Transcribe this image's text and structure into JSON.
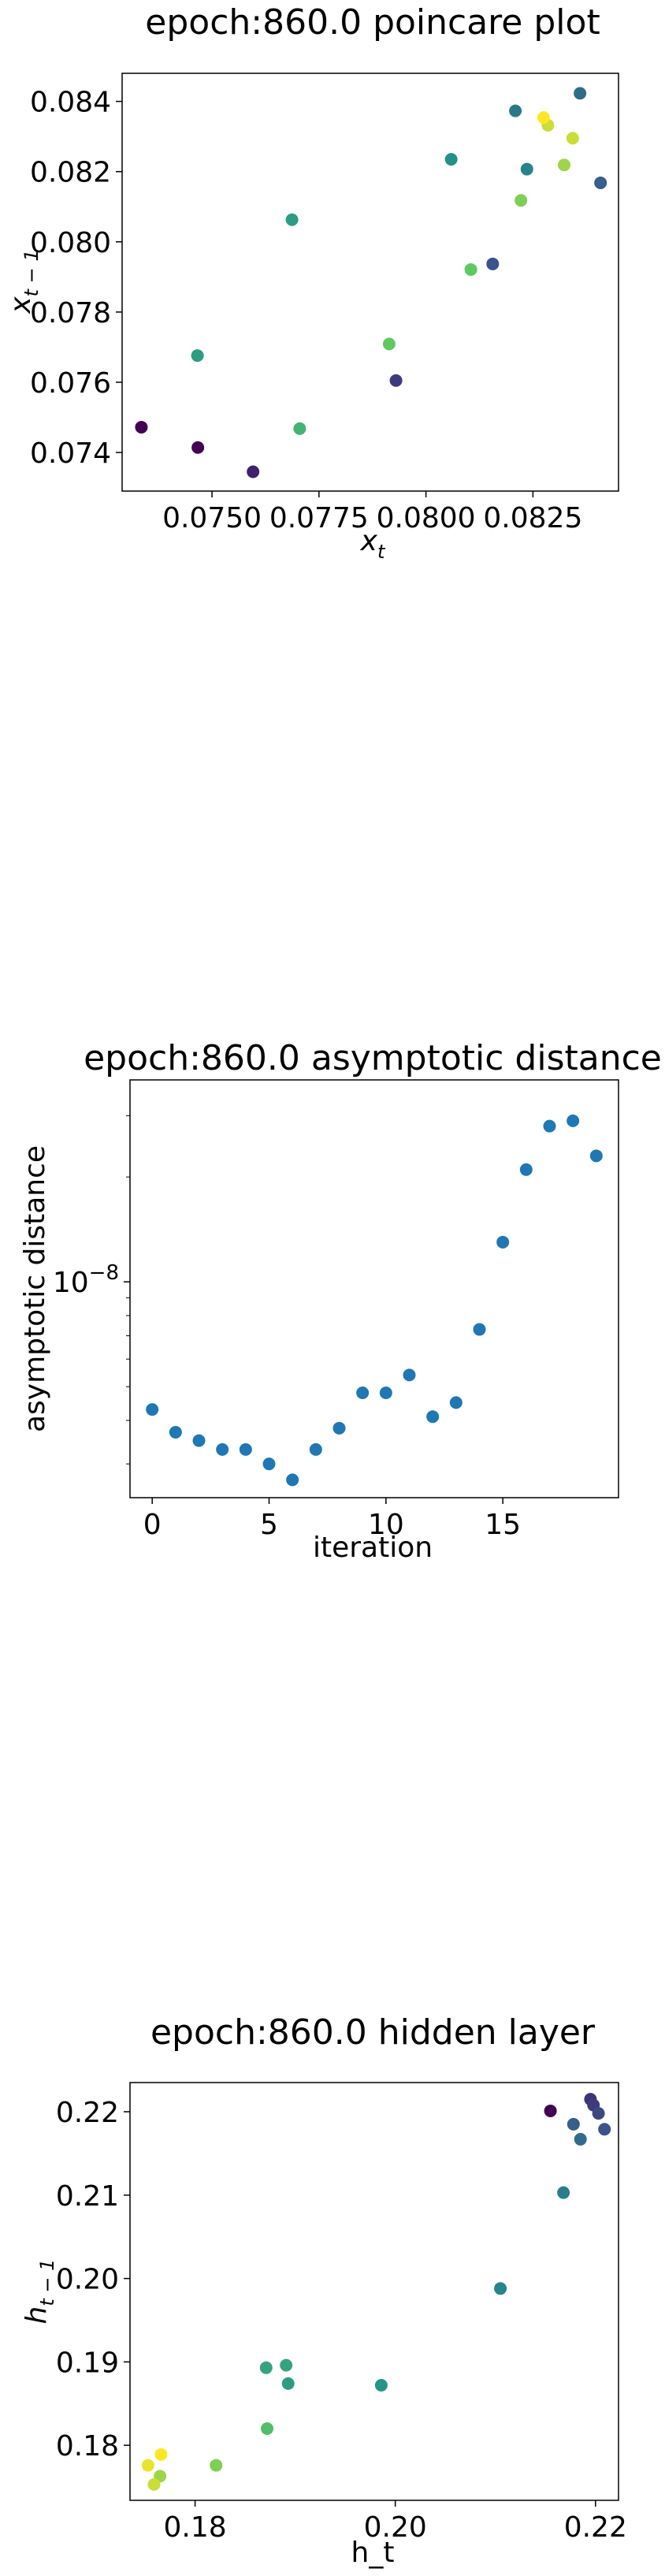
{
  "chart_data": [
    {
      "type": "scatter",
      "title": "epoch:860.0 poincare plot",
      "xlabel": "x_t",
      "ylabel": "x_{t-1}",
      "xlim": [
        0.0729,
        0.0845
      ],
      "ylim": [
        0.0729,
        0.0848
      ],
      "xticks": [
        0.075,
        0.0775,
        0.08,
        0.0825
      ],
      "xtick_labels": [
        "0.0750",
        "0.0775",
        "0.0800",
        "0.0825"
      ],
      "yticks": [
        0.074,
        0.076,
        0.078,
        0.08,
        0.082,
        0.084
      ],
      "ytick_labels": [
        "0.074",
        "0.076",
        "0.078",
        "0.080",
        "0.082",
        "0.084"
      ],
      "grid": false,
      "colormap": "viridis",
      "points": [
        {
          "x": 0.07335,
          "y": 0.07472,
          "c": 0.0
        },
        {
          "x": 0.07467,
          "y": 0.07414,
          "c": 0.0
        },
        {
          "x": 0.07596,
          "y": 0.07345,
          "c": 0.1
        },
        {
          "x": 0.0793,
          "y": 0.07605,
          "c": 0.18
        },
        {
          "x": 0.08156,
          "y": 0.07937,
          "c": 0.25
        },
        {
          "x": 0.08408,
          "y": 0.08168,
          "c": 0.3
        },
        {
          "x": 0.0836,
          "y": 0.08423,
          "c": 0.35
        },
        {
          "x": 0.08209,
          "y": 0.08373,
          "c": 0.4
        },
        {
          "x": 0.08236,
          "y": 0.08207,
          "c": 0.45
        },
        {
          "x": 0.08059,
          "y": 0.08235,
          "c": 0.5
        },
        {
          "x": 0.07466,
          "y": 0.07676,
          "c": 0.55
        },
        {
          "x": 0.07687,
          "y": 0.08063,
          "c": 0.55
        },
        {
          "x": 0.07705,
          "y": 0.07468,
          "c": 0.65
        },
        {
          "x": 0.07914,
          "y": 0.07709,
          "c": 0.75
        },
        {
          "x": 0.08105,
          "y": 0.07921,
          "c": 0.75
        },
        {
          "x": 0.08222,
          "y": 0.08118,
          "c": 0.8
        },
        {
          "x": 0.08323,
          "y": 0.08219,
          "c": 0.85
        },
        {
          "x": 0.08343,
          "y": 0.08295,
          "c": 0.92
        },
        {
          "x": 0.08285,
          "y": 0.08332,
          "c": 0.92
        },
        {
          "x": 0.08275,
          "y": 0.08354,
          "c": 1.0
        }
      ]
    },
    {
      "type": "line",
      "title": "epoch:860.0 asymptotic distance",
      "xlabel": "iteration",
      "ylabel": "asymptotic distance",
      "xlim": [
        -0.95,
        19.95
      ],
      "ylim": [
        2.4e-09,
        3.8e-08
      ],
      "yscale": "log",
      "xticks": [
        0,
        5,
        10,
        15
      ],
      "xtick_labels": [
        "0",
        "5",
        "10",
        "15"
      ],
      "yticks": [
        1e-08
      ],
      "ytick_labels": [
        "10^-8"
      ],
      "grid": false,
      "color": "#1f77b4",
      "marker": "o",
      "linestyle": "none",
      "x": [
        0,
        1,
        2,
        3,
        4,
        5,
        6,
        7,
        8,
        9,
        10,
        11,
        12,
        13,
        14,
        15,
        16,
        17,
        18,
        19
      ],
      "y": [
        4.3e-09,
        3.7e-09,
        3.5e-09,
        3.3e-09,
        3.3e-09,
        3e-09,
        2.7e-09,
        3.3e-09,
        3.8e-09,
        4.8e-09,
        4.8e-09,
        5.4e-09,
        4.1e-09,
        4.5e-09,
        7.3e-09,
        1.3e-08,
        2.1e-08,
        2.8e-08,
        2.9e-08,
        2.3e-08
      ]
    },
    {
      "type": "scatter",
      "title": "epoch:860.0 hidden layer",
      "xlabel": "h_t",
      "ylabel": "h_{t-1}",
      "xlim": [
        0.1735,
        0.2223
      ],
      "ylim": [
        0.1734,
        0.2235
      ],
      "xticks": [
        0.18,
        0.2,
        0.22
      ],
      "xtick_labels": [
        "0.18",
        "0.20",
        "0.22"
      ],
      "yticks": [
        0.18,
        0.19,
        0.2,
        0.21,
        0.22
      ],
      "ytick_labels": [
        "0.18",
        "0.19",
        "0.20",
        "0.21",
        "0.22"
      ],
      "grid": false,
      "colormap": "viridis",
      "points": [
        {
          "x": 0.2155,
          "y": 0.2201,
          "c": 0.0
        },
        {
          "x": 0.2195,
          "y": 0.2215,
          "c": 0.15
        },
        {
          "x": 0.2198,
          "y": 0.2208,
          "c": 0.18
        },
        {
          "x": 0.2203,
          "y": 0.2198,
          "c": 0.22
        },
        {
          "x": 0.2209,
          "y": 0.2179,
          "c": 0.25
        },
        {
          "x": 0.2178,
          "y": 0.2185,
          "c": 0.3
        },
        {
          "x": 0.2185,
          "y": 0.2167,
          "c": 0.35
        },
        {
          "x": 0.2168,
          "y": 0.2103,
          "c": 0.42
        },
        {
          "x": 0.2105,
          "y": 0.1988,
          "c": 0.45
        },
        {
          "x": 0.1986,
          "y": 0.1872,
          "c": 0.52
        },
        {
          "x": 0.1893,
          "y": 0.1874,
          "c": 0.55
        },
        {
          "x": 0.1891,
          "y": 0.1896,
          "c": 0.58
        },
        {
          "x": 0.1871,
          "y": 0.1893,
          "c": 0.58
        },
        {
          "x": 0.1872,
          "y": 0.182,
          "c": 0.7
        },
        {
          "x": 0.1821,
          "y": 0.1776,
          "c": 0.8
        },
        {
          "x": 0.1765,
          "y": 0.1763,
          "c": 0.85
        },
        {
          "x": 0.1759,
          "y": 0.1753,
          "c": 0.92
        },
        {
          "x": 0.1753,
          "y": 0.1776,
          "c": 0.97
        },
        {
          "x": 0.1766,
          "y": 0.1789,
          "c": 1.0
        }
      ]
    }
  ]
}
